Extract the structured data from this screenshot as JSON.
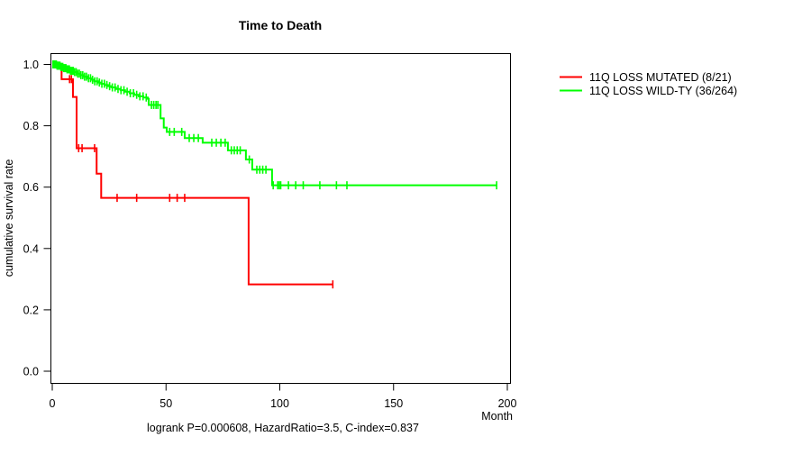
{
  "title": "Time to Death",
  "footer": "logrank P=0.000608, HazardRatio=3.5, C-index=0.837",
  "x_axis": {
    "label": "Month",
    "tick_labels": [
      "0",
      "50",
      "100",
      "150",
      "200"
    ]
  },
  "y_axis": {
    "label": "cumulative survival rate",
    "tick_labels": [
      "0.0",
      "0.2",
      "0.4",
      "0.6",
      "0.8",
      "1.0"
    ]
  },
  "legend": [
    {
      "label": "11Q LOSS MUTATED (8/21)",
      "color": "#ff0000"
    },
    {
      "label": "11Q LOSS WILD-TY (36/264)",
      "color": "#00ff00"
    }
  ],
  "colors": {
    "mutated": "#ff0000",
    "wildtype": "#00ff00",
    "axis": "#000000",
    "background": "#ffffff"
  },
  "chart_data": {
    "type": "line",
    "subtype": "kaplan-meier-step",
    "title": "Time to Death",
    "xlabel": "Month",
    "ylabel": "cumulative survival rate",
    "xlim": [
      0,
      200
    ],
    "ylim": [
      0.0,
      1.0
    ],
    "x_ticks": [
      0,
      50,
      100,
      150,
      200
    ],
    "y_ticks": [
      0.0,
      0.2,
      0.4,
      0.6,
      0.8,
      1.0
    ],
    "grid": false,
    "legend_position": "right-outside",
    "stats": {
      "logrank_p": 0.000608,
      "hazard_ratio": 3.5,
      "c_index": 0.837
    },
    "series": [
      {
        "name": "11Q LOSS MUTATED (8/21)",
        "color": "#ff0000",
        "events": 8,
        "n": 21,
        "start_survival": 1.0,
        "steps": [
          [
            4.1,
            0.952
          ],
          [
            9.1,
            0.894
          ],
          [
            10.7,
            0.727
          ],
          [
            19.5,
            0.644
          ],
          [
            21.5,
            0.565
          ],
          [
            86.3,
            0.283
          ]
        ],
        "end_time": 123.5,
        "censor_times": [
          7.6,
          8.4,
          11.6,
          13.1,
          18.6,
          28.5,
          37.1,
          51.6,
          54.9,
          58.2,
          123.3
        ]
      },
      {
        "name": "11Q LOSS WILD-TY (36/264)",
        "color": "#00ff00",
        "events": 36,
        "n": 264,
        "start_survival": 1.0,
        "steps": [
          [
            2,
            0.996
          ],
          [
            3.5,
            0.992
          ],
          [
            5,
            0.988
          ],
          [
            6.5,
            0.984
          ],
          [
            8,
            0.979
          ],
          [
            9.5,
            0.975
          ],
          [
            11,
            0.97
          ],
          [
            12.5,
            0.965
          ],
          [
            14,
            0.96
          ],
          [
            15.5,
            0.955
          ],
          [
            17,
            0.95
          ],
          [
            18.5,
            0.945
          ],
          [
            20,
            0.941
          ],
          [
            21.5,
            0.937
          ],
          [
            23,
            0.933
          ],
          [
            24.5,
            0.929
          ],
          [
            26,
            0.925
          ],
          [
            28,
            0.92
          ],
          [
            30,
            0.916
          ],
          [
            32,
            0.911
          ],
          [
            34,
            0.906
          ],
          [
            36,
            0.901
          ],
          [
            38,
            0.896
          ],
          [
            40,
            0.892
          ],
          [
            42,
            0.888
          ],
          [
            42.4,
            0.868
          ],
          [
            47.6,
            0.824
          ],
          [
            49,
            0.794
          ],
          [
            50.3,
            0.78
          ],
          [
            58.2,
            0.76
          ],
          [
            66.1,
            0.745
          ],
          [
            77.2,
            0.72
          ],
          [
            85.1,
            0.69
          ],
          [
            87.9,
            0.657
          ],
          [
            96.6,
            0.606
          ]
        ],
        "end_time": 195.5,
        "censor_times": [
          0.3,
          0.6,
          0.9,
          1.2,
          1.5,
          1.8,
          2.1,
          2.4,
          2.7,
          3.0,
          3.4,
          3.8,
          4.2,
          4.6,
          5.0,
          5.5,
          6.0,
          6.5,
          7.0,
          7.5,
          8.0,
          8.6,
          9.2,
          9.8,
          10.5,
          11.2,
          11.9,
          12.6,
          13.4,
          14.2,
          15.0,
          15.9,
          16.8,
          17.7,
          18.7,
          19.7,
          20.7,
          21.8,
          22.9,
          24.0,
          25.2,
          26.4,
          27.6,
          28.9,
          30.2,
          31.5,
          32.9,
          34.3,
          35.7,
          37.1,
          38.5,
          39.9,
          41.3,
          43.6,
          44.6,
          45.6,
          46.4,
          51.6,
          53.6,
          56.9,
          60.2,
          62.2,
          64.2,
          70.1,
          72.1,
          74.1,
          76.0,
          78.7,
          80.0,
          81.3,
          82.6,
          86.6,
          89.9,
          91.2,
          92.5,
          93.9,
          97.1,
          99.1,
          99.8,
          100.4,
          103.8,
          107.0,
          110.3,
          117.6,
          124.9,
          129.5,
          195.3
        ]
      }
    ]
  }
}
